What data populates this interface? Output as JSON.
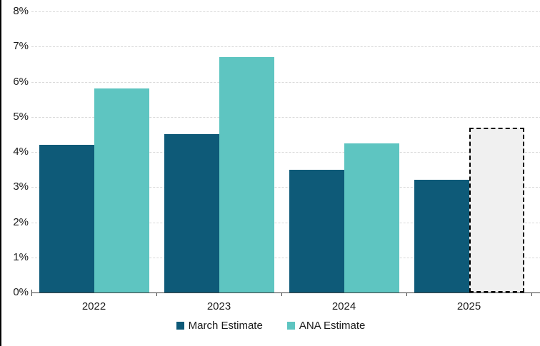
{
  "chart_data": {
    "type": "bar",
    "title": "",
    "categories": [
      "2022",
      "2023",
      "2024",
      "2025"
    ],
    "series": [
      {
        "name": "March Estimate",
        "color": "#0e5a78",
        "values": [
          4.2,
          4.5,
          3.5,
          3.2
        ]
      },
      {
        "name": "ANA Estimate",
        "color": "#5ec5c1",
        "values": [
          5.8,
          6.7,
          4.25,
          4.7
        ],
        "dashed_outline_categories": [
          "2025"
        ],
        "dashed_outline_fill": "#f0f0f0",
        "dashed_outline_border": "#000000"
      }
    ],
    "ylim": [
      0,
      8
    ],
    "ytick_step": 1,
    "ytick_labels": [
      "0%",
      "1%",
      "2%",
      "3%",
      "4%",
      "5%",
      "6%",
      "7%",
      "8%"
    ],
    "xlabel": "",
    "ylabel": "",
    "grid": "horizontal dashed",
    "gridline_color": "#d9d9d9",
    "axis_color": "#404040",
    "legend_position": "bottom-center"
  }
}
